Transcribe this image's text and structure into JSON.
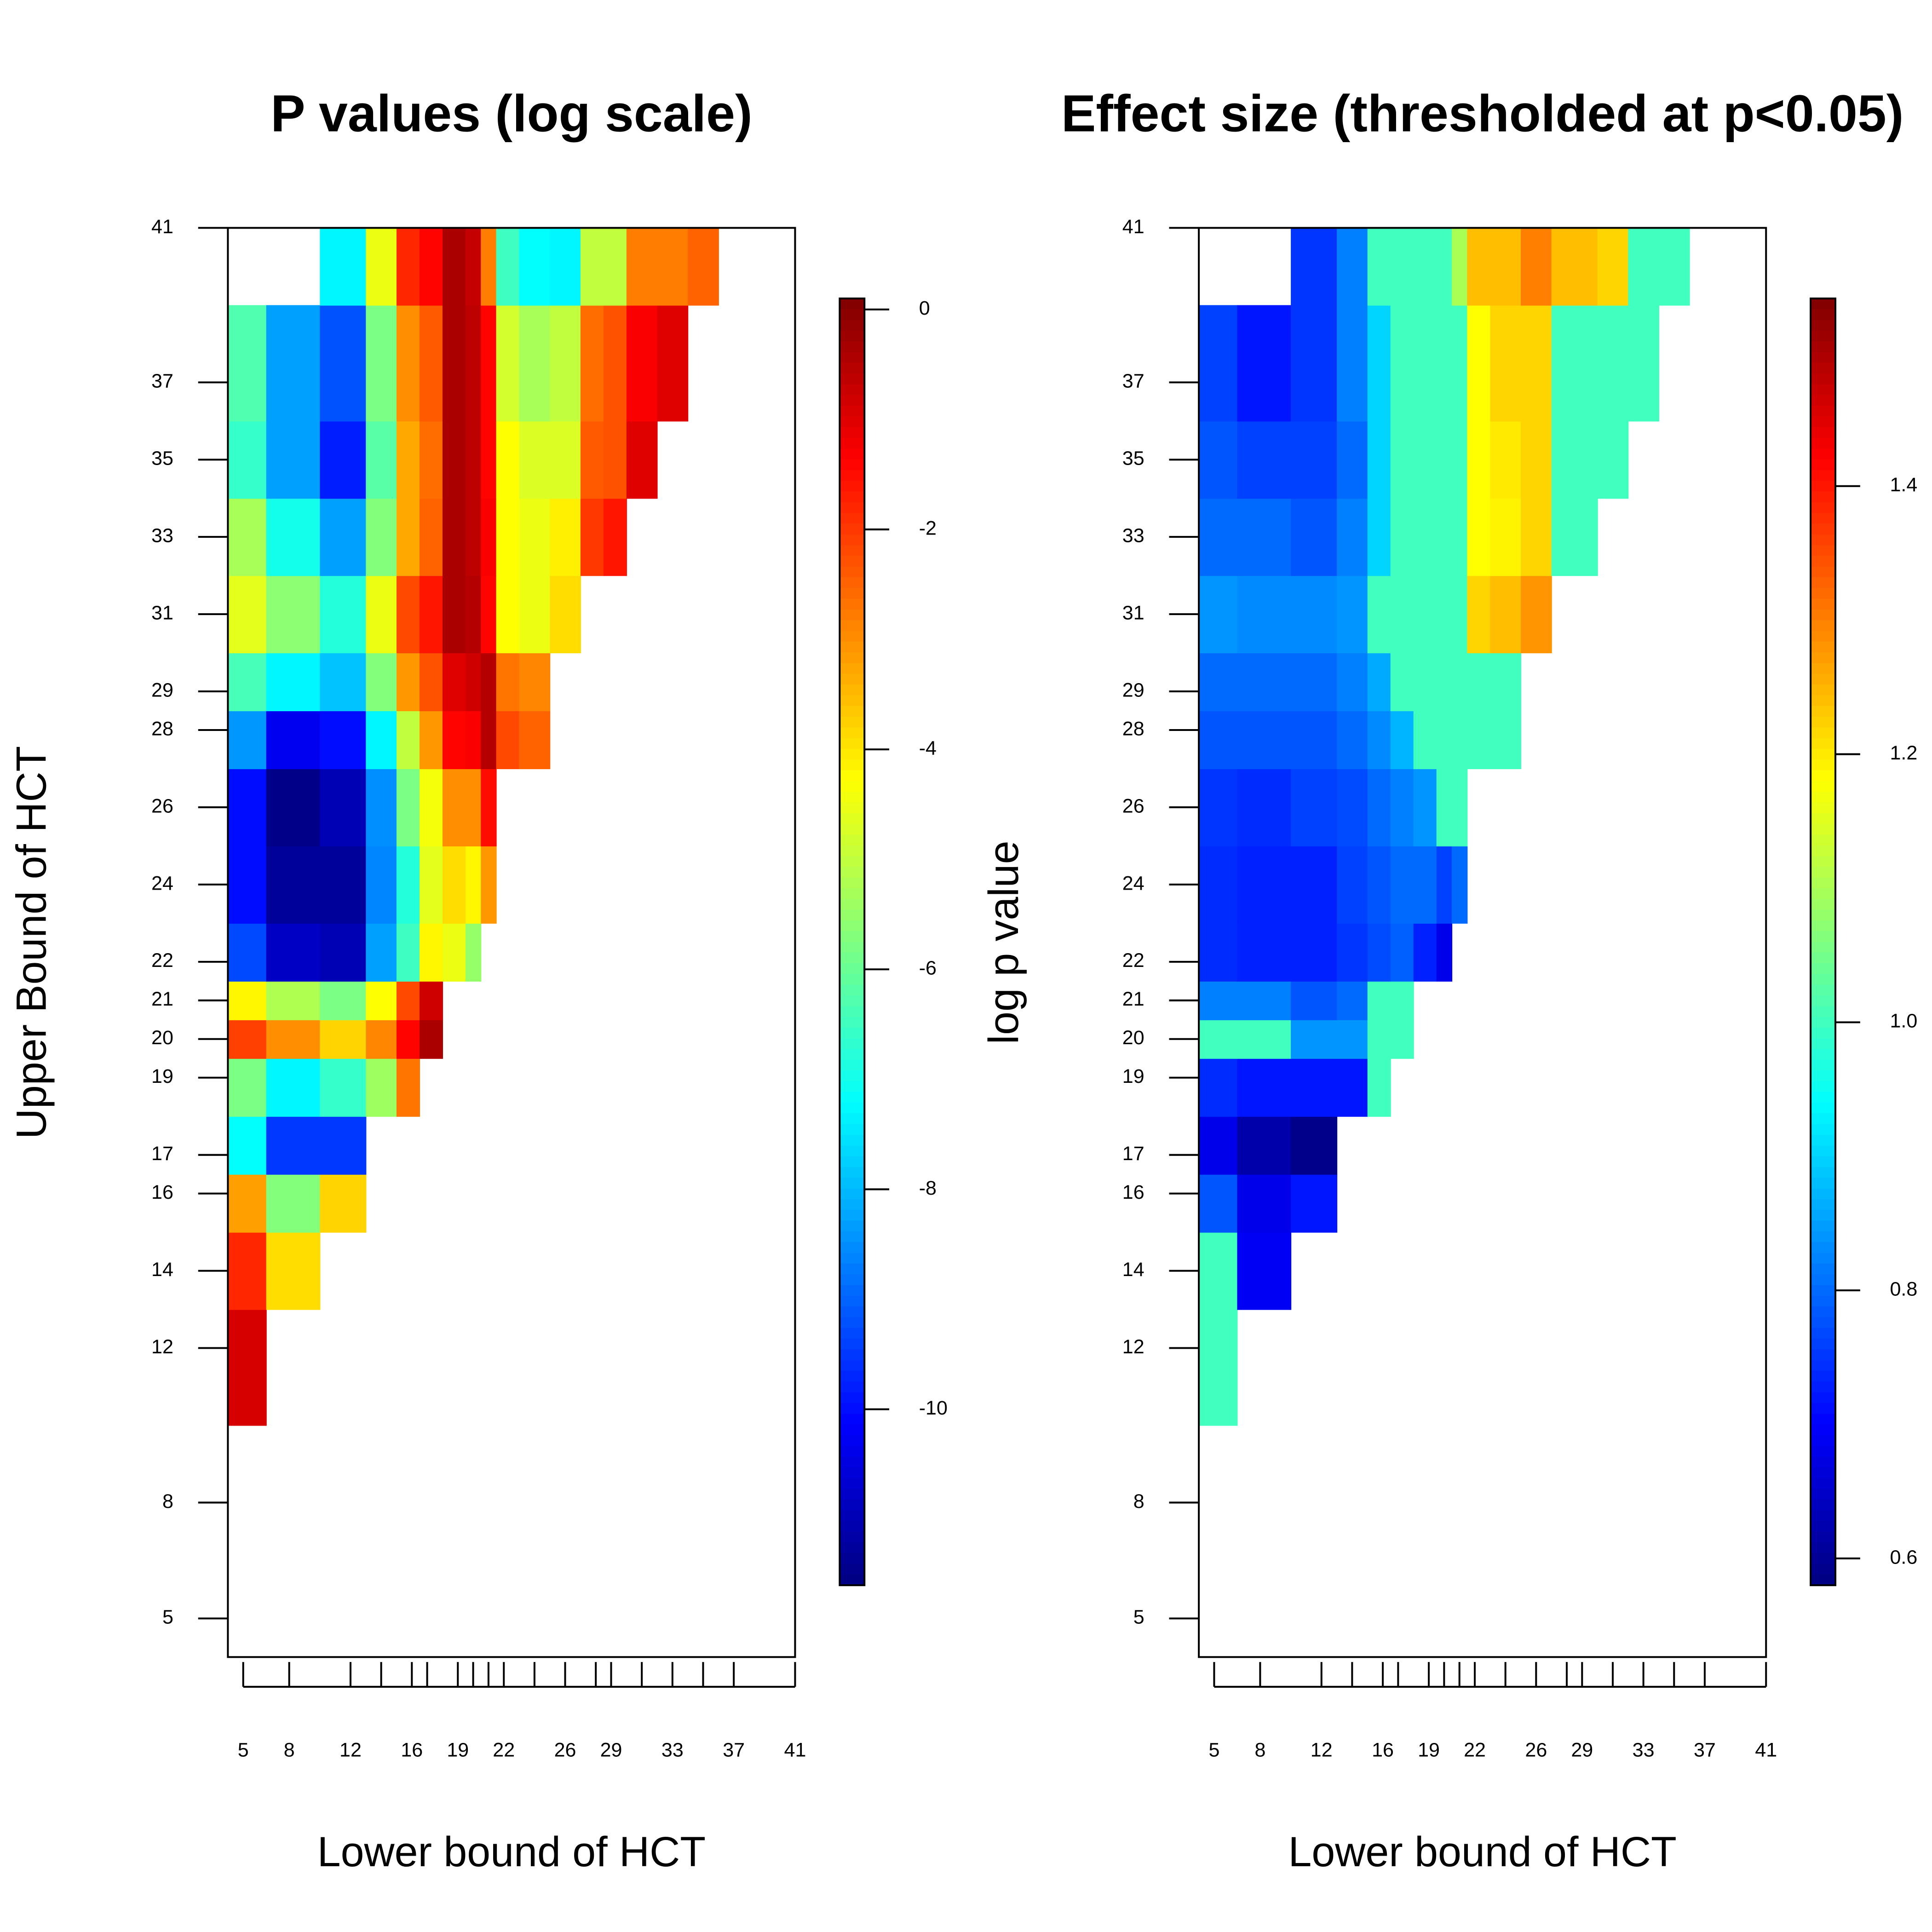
{
  "chart_data": [
    {
      "type": "heatmap",
      "title": "P values (log scale)",
      "xlabel": "Lower bound of HCT",
      "ylabel": "Upper Bound of HCT",
      "zlabel": "log p value",
      "colormap": "jet",
      "x": [
        5,
        8,
        12,
        14,
        16,
        17,
        19,
        20,
        21,
        22,
        24,
        26,
        28,
        29,
        31,
        33,
        35,
        37,
        41
      ],
      "y": [
        5,
        8,
        12,
        14,
        16,
        17,
        19,
        20,
        21,
        22,
        24,
        26,
        28,
        29,
        31,
        33,
        35,
        37,
        41
      ],
      "xlim": [
        4,
        41
      ],
      "ylim": [
        4,
        41
      ],
      "xticks": [
        5,
        8,
        12,
        16,
        19,
        22,
        26,
        29,
        33,
        37,
        41
      ],
      "xminor_ticks": [
        14,
        17,
        20,
        21,
        24,
        28,
        31,
        35
      ],
      "yticks": [
        5,
        8,
        12,
        14,
        16,
        17,
        19,
        20,
        21,
        22,
        24,
        26,
        28,
        29,
        31,
        33,
        35,
        37,
        41
      ],
      "zlim": [
        -11.6,
        0.1
      ],
      "zticks": [
        0,
        -2,
        -4,
        -6,
        -8,
        -10
      ],
      "z": [
        [
          null,
          null,
          null,
          null,
          null,
          null,
          null,
          null,
          null,
          null,
          null,
          null,
          null,
          null,
          null,
          null,
          null,
          null,
          null
        ],
        [
          null,
          null,
          null,
          null,
          null,
          null,
          null,
          null,
          null,
          null,
          null,
          null,
          null,
          null,
          null,
          null,
          null,
          null,
          null
        ],
        [
          -0.9,
          null,
          null,
          null,
          null,
          null,
          null,
          null,
          null,
          null,
          null,
          null,
          null,
          null,
          null,
          null,
          null,
          null,
          null
        ],
        [
          -1.8,
          -3.9,
          null,
          null,
          null,
          null,
          null,
          null,
          null,
          null,
          null,
          null,
          null,
          null,
          null,
          null,
          null,
          null,
          null
        ],
        [
          -3.2,
          -5.7,
          -3.8,
          null,
          null,
          null,
          null,
          null,
          null,
          null,
          null,
          null,
          null,
          null,
          null,
          null,
          null,
          null,
          null
        ],
        [
          -7.2,
          -9.5,
          -9.5,
          null,
          null,
          null,
          null,
          null,
          null,
          null,
          null,
          null,
          null,
          null,
          null,
          null,
          null,
          null,
          null
        ],
        [
          -5.8,
          -7.3,
          -6.6,
          -5.4,
          -2.7,
          null,
          null,
          null,
          null,
          null,
          null,
          null,
          null,
          null,
          null,
          null,
          null,
          null,
          null
        ],
        [
          -2.1,
          -3.0,
          -3.8,
          -2.9,
          -1.4,
          -0.4,
          null,
          null,
          null,
          null,
          null,
          null,
          null,
          null,
          null,
          null,
          null,
          null,
          null
        ],
        [
          -4.2,
          -5.2,
          -5.8,
          -4.3,
          -2.2,
          -0.8,
          null,
          null,
          null,
          null,
          null,
          null,
          null,
          null,
          null,
          null,
          null,
          null,
          null
        ],
        [
          -9.3,
          -10.8,
          -11.0,
          -8.3,
          -6.5,
          -4.2,
          -4.5,
          -5.5,
          null,
          null,
          null,
          null,
          null,
          null,
          null,
          null,
          null,
          null,
          null
        ],
        [
          -10.0,
          -11.3,
          -11.3,
          -8.6,
          -6.8,
          -4.6,
          -3.9,
          -4.2,
          -3.1,
          null,
          null,
          null,
          null,
          null,
          null,
          null,
          null,
          null,
          null
        ],
        [
          -10.0,
          -11.5,
          -11.0,
          -8.5,
          -5.8,
          -4.4,
          -3.0,
          -3.0,
          -1.5,
          null,
          null,
          null,
          null,
          null,
          null,
          null,
          null,
          null,
          null
        ],
        [
          -8.4,
          -10.3,
          -10.0,
          -7.3,
          -5.0,
          -3.1,
          -1.4,
          -1.3,
          -0.5,
          -2.2,
          -2.5,
          null,
          null,
          null,
          null,
          null,
          null,
          null,
          null
        ],
        [
          -6.4,
          -7.3,
          -7.9,
          -5.7,
          -3.1,
          -2.3,
          -1.0,
          -0.8,
          -0.5,
          -2.7,
          -2.9,
          null,
          null,
          null,
          null,
          null,
          null,
          null,
          null
        ],
        [
          -4.6,
          -5.6,
          -6.8,
          -4.5,
          -2.2,
          -1.6,
          -0.4,
          -0.5,
          -1.4,
          -4.3,
          -4.5,
          -3.9,
          null,
          null,
          null,
          null,
          null,
          null,
          null
        ],
        [
          -5.3,
          -7.0,
          -8.3,
          -5.7,
          -3.3,
          -2.5,
          -0.4,
          -0.6,
          -1.3,
          -4.3,
          -4.5,
          -4.1,
          -2.0,
          -1.6,
          null,
          null,
          null,
          null,
          null
        ],
        [
          -6.6,
          -8.3,
          -9.8,
          -6.2,
          -3.3,
          -2.6,
          -0.4,
          -0.6,
          -1.4,
          -4.3,
          -4.7,
          -4.7,
          -2.4,
          -2.3,
          -1.0,
          null,
          null,
          null,
          null
        ],
        [
          -6.3,
          -8.3,
          -9.2,
          -5.8,
          -3.0,
          -2.4,
          -0.4,
          -0.6,
          -1.4,
          -4.8,
          -5.3,
          -5.0,
          -2.6,
          -2.3,
          -1.3,
          -1.0,
          null,
          null,
          null
        ],
        [
          null,
          null,
          -7.3,
          -4.5,
          -1.8,
          -1.4,
          -0.4,
          -0.7,
          -2.8,
          -6.5,
          -7.2,
          -7.3,
          -5.0,
          -5.0,
          -2.8,
          -2.8,
          -2.5,
          null,
          null
        ]
      ]
    },
    {
      "type": "heatmap",
      "title": "Effect size (thresholded at p<0.05)",
      "xlabel": "Lower bound of HCT",
      "colormap": "jet",
      "x": [
        5,
        8,
        12,
        14,
        16,
        17,
        19,
        20,
        21,
        22,
        24,
        26,
        28,
        29,
        31,
        33,
        35,
        37,
        41
      ],
      "y": [
        5,
        8,
        12,
        14,
        16,
        17,
        19,
        20,
        21,
        22,
        24,
        26,
        28,
        29,
        31,
        33,
        35,
        37,
        41
      ],
      "xlim": [
        4,
        41
      ],
      "ylim": [
        4,
        41
      ],
      "xticks": [
        5,
        8,
        12,
        16,
        19,
        22,
        26,
        29,
        33,
        37,
        41
      ],
      "xminor_ticks": [
        14,
        17,
        20,
        21,
        24,
        28,
        31,
        35
      ],
      "yticks": [
        5,
        8,
        12,
        14,
        16,
        17,
        19,
        20,
        21,
        22,
        24,
        26,
        28,
        29,
        31,
        33,
        35,
        37,
        41
      ],
      "zlim": [
        0.58,
        1.54
      ],
      "zticks": [
        0.6,
        0.8,
        {
          "value": 1,
          "label": "1.0"
        },
        1.2,
        1.4
      ],
      "z": [
        [
          null,
          null,
          null,
          null,
          null,
          null,
          null,
          null,
          null,
          null,
          null,
          null,
          null,
          null,
          null,
          null,
          null,
          null,
          null
        ],
        [
          null,
          null,
          null,
          null,
          null,
          null,
          null,
          null,
          null,
          null,
          null,
          null,
          null,
          null,
          null,
          null,
          null,
          null,
          null
        ],
        [
          1.0,
          null,
          null,
          null,
          null,
          null,
          null,
          null,
          null,
          null,
          null,
          null,
          null,
          null,
          null,
          null,
          null,
          null,
          null
        ],
        [
          1.0,
          0.69,
          null,
          null,
          null,
          null,
          null,
          null,
          null,
          null,
          null,
          null,
          null,
          null,
          null,
          null,
          null,
          null,
          null
        ],
        [
          0.78,
          0.68,
          0.72,
          null,
          null,
          null,
          null,
          null,
          null,
          null,
          null,
          null,
          null,
          null,
          null,
          null,
          null,
          null,
          null
        ],
        [
          0.68,
          0.62,
          0.59,
          null,
          null,
          null,
          null,
          null,
          null,
          null,
          null,
          null,
          null,
          null,
          null,
          null,
          null,
          null,
          null
        ],
        [
          0.74,
          0.72,
          0.72,
          0.72,
          1.0,
          null,
          null,
          null,
          null,
          null,
          null,
          null,
          null,
          null,
          null,
          null,
          null,
          null,
          null
        ],
        [
          1.0,
          1.0,
          0.84,
          0.84,
          1.0,
          1.0,
          null,
          null,
          null,
          null,
          null,
          null,
          null,
          null,
          null,
          null,
          null,
          null,
          null
        ],
        [
          0.82,
          0.82,
          0.78,
          0.8,
          1.0,
          1.0,
          null,
          null,
          null,
          null,
          null,
          null,
          null,
          null,
          null,
          null,
          null,
          null,
          null
        ],
        [
          0.74,
          0.73,
          0.73,
          0.75,
          0.77,
          0.79,
          0.73,
          0.68,
          null,
          null,
          null,
          null,
          null,
          null,
          null,
          null,
          null,
          null,
          null
        ],
        [
          0.74,
          0.73,
          0.73,
          0.76,
          0.78,
          0.8,
          0.8,
          0.76,
          0.8,
          null,
          null,
          null,
          null,
          null,
          null,
          null,
          null,
          null,
          null
        ],
        [
          0.75,
          0.74,
          0.76,
          0.77,
          0.8,
          0.82,
          0.84,
          1.0,
          1.0,
          null,
          null,
          null,
          null,
          null,
          null,
          null,
          null,
          null,
          null
        ],
        [
          0.78,
          0.78,
          0.78,
          0.8,
          0.83,
          0.87,
          1.0,
          1.0,
          1.0,
          1.0,
          1.0,
          null,
          null,
          null,
          null,
          null,
          null,
          null,
          null
        ],
        [
          0.8,
          0.8,
          0.8,
          0.82,
          0.86,
          1.0,
          1.0,
          1.0,
          1.0,
          1.0,
          1.0,
          null,
          null,
          null,
          null,
          null,
          null,
          null,
          null
        ],
        [
          0.84,
          0.83,
          0.83,
          0.84,
          1.0,
          1.0,
          1.0,
          1.0,
          1.0,
          1.22,
          1.24,
          1.28,
          null,
          null,
          null,
          null,
          null,
          null,
          null
        ],
        [
          0.8,
          0.8,
          0.78,
          0.82,
          0.9,
          1.0,
          1.0,
          1.0,
          1.0,
          1.18,
          1.19,
          1.22,
          1.0,
          1.0,
          null,
          null,
          null,
          null,
          null
        ],
        [
          0.78,
          0.76,
          0.76,
          0.8,
          0.9,
          1.0,
          1.0,
          1.0,
          1.0,
          1.18,
          1.2,
          1.22,
          1.0,
          1.0,
          1.0,
          null,
          null,
          null,
          null
        ],
        [
          0.76,
          0.72,
          0.75,
          0.82,
          0.9,
          1.0,
          1.0,
          1.0,
          1.0,
          1.18,
          1.22,
          1.22,
          1.0,
          1.0,
          1.0,
          1.0,
          null,
          null,
          null
        ],
        [
          null,
          null,
          0.75,
          0.82,
          1.0,
          1.0,
          1.0,
          1.0,
          1.1,
          1.24,
          1.24,
          1.3,
          1.24,
          1.24,
          1.22,
          1.0,
          1.0,
          null,
          null
        ]
      ]
    }
  ]
}
